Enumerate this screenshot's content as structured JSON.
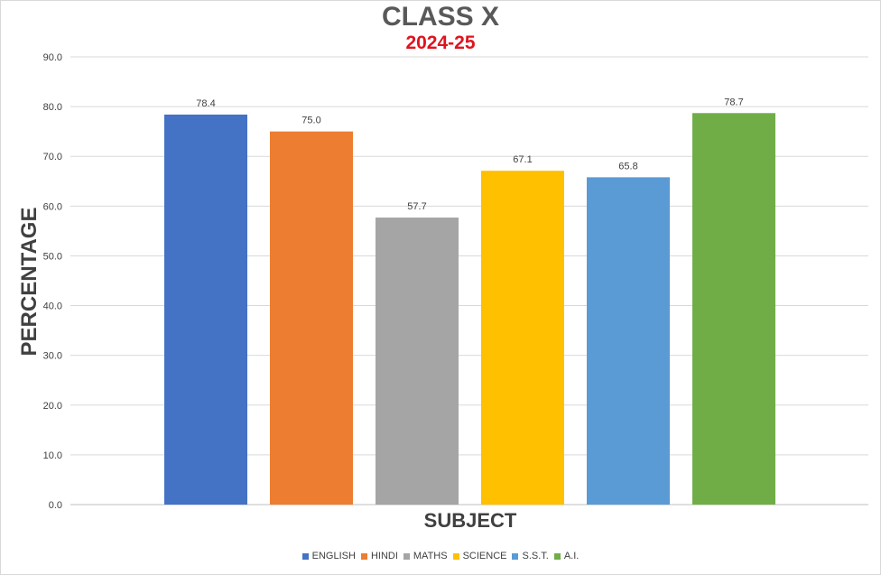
{
  "chart_data": {
    "type": "bar",
    "title": "CLASS X",
    "subtitle": "2024-25",
    "xlabel": "SUBJECT",
    "ylabel": "PERCENTAGE",
    "ylim": [
      0,
      90
    ],
    "yticks": [
      "0.0",
      "10.0",
      "20.0",
      "30.0",
      "40.0",
      "50.0",
      "60.0",
      "70.0",
      "80.0",
      "90.0"
    ],
    "grid": true,
    "legend_position": "bottom",
    "categories": [
      "ENGLISH",
      "HINDI",
      "MATHS",
      "SCIENCE",
      "S.S.T.",
      "A.I."
    ],
    "values": [
      78.4,
      75.0,
      57.7,
      67.1,
      65.8,
      78.7
    ],
    "value_labels": [
      "78.4",
      "75.0",
      "57.7",
      "67.1",
      "65.8",
      "78.7"
    ],
    "colors": [
      "#4472c4",
      "#ed7d31",
      "#a5a5a5",
      "#ffc000",
      "#5b9bd5",
      "#70ad47"
    ]
  }
}
